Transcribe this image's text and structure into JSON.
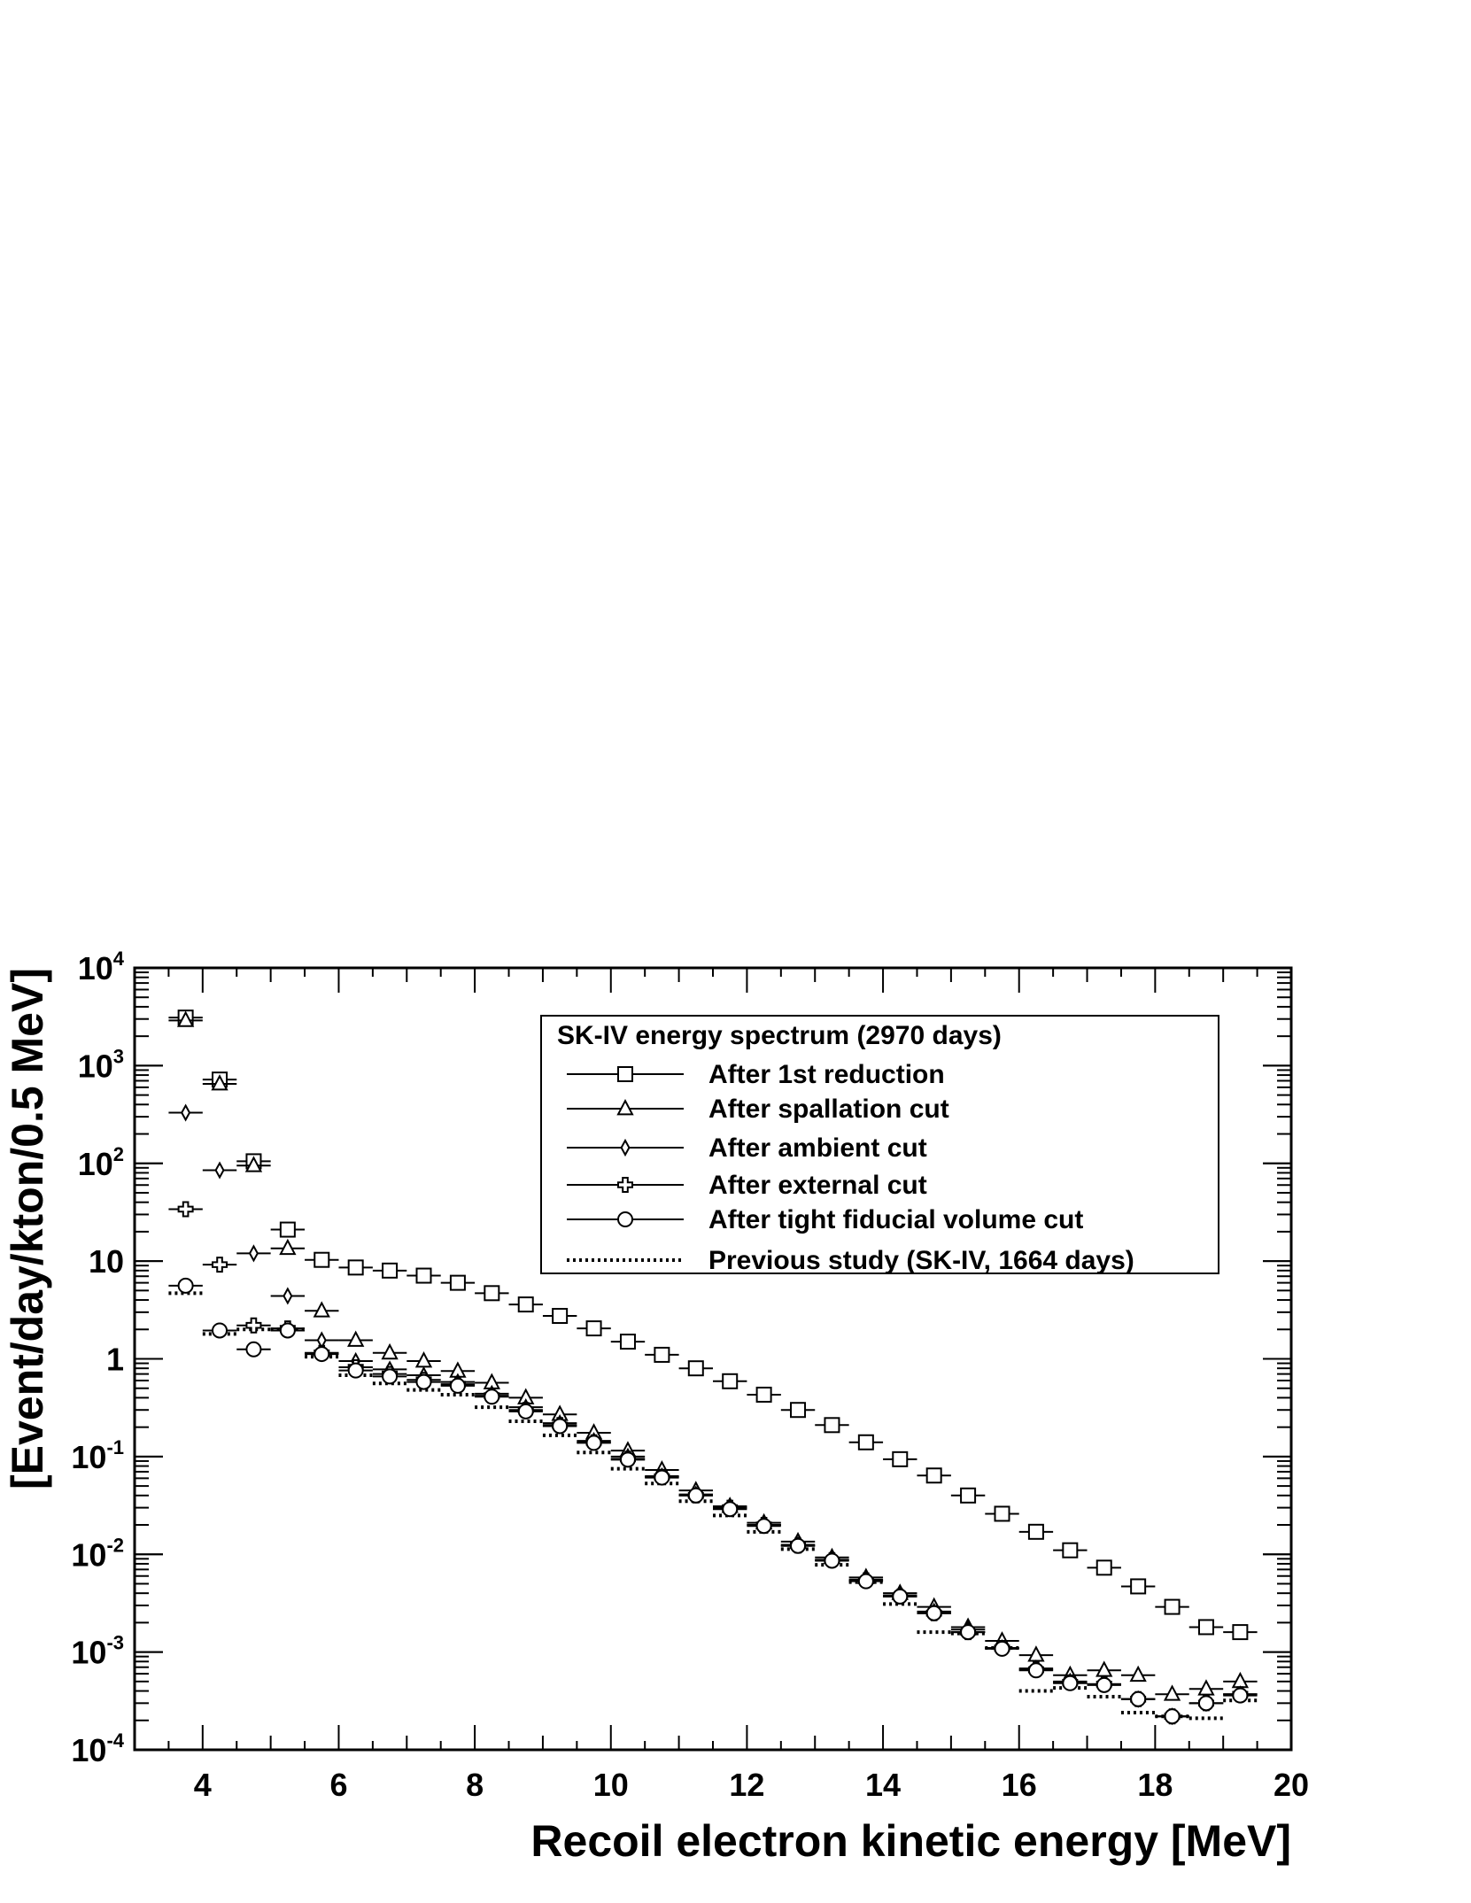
{
  "chart_data": {
    "type": "scatter",
    "xlabel": "Recoil electron kinetic energy [MeV]",
    "ylabel": "[Event/day/kton/0.5 MeV]",
    "xlim": [
      3,
      20
    ],
    "ylim": [
      0.0001,
      10000
    ],
    "yscale": "log",
    "grid": false,
    "x_ticks": [
      "4",
      "6",
      "8",
      "10",
      "12",
      "14",
      "16",
      "18",
      "20"
    ],
    "y_ticks": [
      {
        "base": "10",
        "exp": "-4"
      },
      {
        "base": "10",
        "exp": "-3"
      },
      {
        "base": "10",
        "exp": "-2"
      },
      {
        "base": "10",
        "exp": "-1"
      },
      {
        "base": "1",
        "exp": ""
      },
      {
        "base": "10",
        "exp": ""
      },
      {
        "base": "10",
        "exp": "2"
      },
      {
        "base": "10",
        "exp": "3"
      },
      {
        "base": "10",
        "exp": "4"
      }
    ],
    "legend": {
      "position": "top-right",
      "title": "SK-IV energy spectrum (2970 days)"
    },
    "series": [
      {
        "name": "After 1st reduction",
        "marker": "square",
        "x": [
          3.75,
          4.25,
          4.75,
          5.25,
          5.75,
          6.25,
          6.75,
          7.25,
          7.75,
          8.25,
          8.75,
          9.25,
          9.75,
          10.25,
          10.75,
          11.25,
          11.75,
          12.25,
          12.75,
          13.25,
          13.75,
          14.25,
          14.75,
          15.25,
          15.75,
          16.25,
          16.75,
          17.25,
          17.75,
          18.25,
          18.75,
          19.25
        ],
        "values": [
          3100,
          720,
          105,
          21,
          10.3,
          8.6,
          8.0,
          7.1,
          6.0,
          4.7,
          3.6,
          2.75,
          2.05,
          1.5,
          1.1,
          0.8,
          0.59,
          0.43,
          0.3,
          0.21,
          0.14,
          0.094,
          0.064,
          0.04,
          0.026,
          0.017,
          0.011,
          0.0073,
          0.0047,
          0.0029,
          0.0018,
          0.0016
        ]
      },
      {
        "name": "After spallation cut",
        "marker": "triangle",
        "x": [
          3.75,
          4.25,
          4.75,
          5.25,
          5.75,
          6.25,
          6.75,
          7.25,
          7.75,
          8.25,
          8.75,
          9.25,
          9.75,
          10.25,
          10.75,
          11.25,
          11.75,
          12.25,
          12.75,
          13.25,
          13.75,
          14.25,
          14.75,
          15.25,
          15.75,
          16.25,
          16.75,
          17.25,
          17.75,
          18.25,
          18.75,
          19.25
        ],
        "values": [
          2900,
          650,
          95,
          13.5,
          3.1,
          1.55,
          1.15,
          0.95,
          0.75,
          0.57,
          0.4,
          0.27,
          0.175,
          0.115,
          0.073,
          0.045,
          0.031,
          0.021,
          0.0135,
          0.0093,
          0.0058,
          0.004,
          0.0029,
          0.0018,
          0.0013,
          0.00093,
          0.00058,
          0.00065,
          0.00058,
          0.00037,
          0.00042,
          0.0005
        ]
      },
      {
        "name": "After ambient cut",
        "marker": "diamond",
        "x": [
          3.75,
          4.25,
          4.75,
          5.25,
          5.75,
          6.25,
          6.75,
          7.25,
          7.75,
          8.25,
          8.75,
          9.25,
          9.75,
          10.25,
          10.75,
          11.25,
          11.75,
          12.25,
          12.75,
          13.25,
          13.75,
          14.25,
          14.75,
          15.25,
          15.75,
          16.25,
          16.75,
          17.25,
          17.75,
          18.25,
          18.75,
          19.25
        ],
        "values": [
          330,
          85,
          12,
          4.4,
          1.55,
          0.95,
          0.78,
          0.68,
          0.58,
          0.44,
          0.32,
          0.22,
          0.145,
          0.1,
          0.063,
          0.041,
          0.03,
          0.02,
          0.0125,
          0.0088,
          0.0055,
          0.0038,
          0.0026,
          0.0017,
          0.0011,
          0.00068,
          0.0005,
          0.00047,
          0.00033,
          0.00022,
          0.0003,
          0.00037
        ]
      },
      {
        "name": "After external cut",
        "marker": "cross",
        "x": [
          3.75,
          4.25,
          4.75,
          5.25,
          5.75,
          6.25,
          6.75,
          7.25,
          7.75,
          8.25,
          8.75,
          9.25,
          9.75,
          10.25,
          10.75,
          11.25,
          11.75,
          12.25,
          12.75,
          13.25,
          13.75,
          14.25,
          14.75,
          15.25,
          15.75,
          16.25,
          16.75,
          17.25,
          17.75,
          18.25,
          18.75,
          19.25
        ],
        "values": [
          34,
          9.2,
          2.2,
          2.05,
          1.15,
          0.82,
          0.7,
          0.61,
          0.55,
          0.42,
          0.3,
          0.21,
          0.14,
          0.095,
          0.062,
          0.04,
          0.03,
          0.02,
          0.0123,
          0.0087,
          0.0054,
          0.0037,
          0.0025,
          0.0016,
          0.0011,
          0.00066,
          0.00049,
          0.00047,
          0.00033,
          0.00022,
          0.0003,
          0.00037
        ]
      },
      {
        "name": "After tight fiducial volume cut",
        "marker": "circle",
        "x": [
          3.75,
          4.25,
          4.75,
          5.25,
          5.75,
          6.25,
          6.75,
          7.25,
          7.75,
          8.25,
          8.75,
          9.25,
          9.75,
          10.25,
          10.75,
          11.25,
          11.75,
          12.25,
          12.75,
          13.25,
          13.75,
          14.25,
          14.75,
          15.25,
          15.75,
          16.25,
          16.75,
          17.25,
          17.75,
          18.25,
          18.75,
          19.25
        ],
        "values": [
          5.6,
          1.95,
          1.25,
          1.95,
          1.12,
          0.76,
          0.66,
          0.58,
          0.53,
          0.41,
          0.29,
          0.205,
          0.138,
          0.093,
          0.061,
          0.04,
          0.029,
          0.0195,
          0.0122,
          0.0086,
          0.0053,
          0.0037,
          0.0025,
          0.0016,
          0.00108,
          0.00065,
          0.00048,
          0.00046,
          0.00033,
          0.00022,
          0.0003,
          0.00036
        ]
      },
      {
        "name": "Previous study (SK-IV, 1664 days)",
        "marker": "dotted-line",
        "x": [
          3.75,
          4.25,
          4.75,
          5.25,
          5.75,
          6.25,
          6.75,
          7.25,
          7.75,
          8.25,
          8.75,
          9.25,
          9.75,
          10.25,
          10.75,
          11.25,
          11.75,
          12.25,
          12.75,
          13.25,
          13.75,
          14.25,
          14.75,
          15.25,
          15.75,
          16.25,
          16.75,
          17.25,
          17.75,
          18.25,
          18.75,
          19.25
        ],
        "values": [
          4.7,
          1.8,
          2.0,
          2.0,
          1.05,
          0.68,
          0.56,
          0.48,
          0.43,
          0.32,
          0.23,
          0.165,
          0.11,
          0.075,
          0.053,
          0.035,
          0.025,
          0.017,
          0.0113,
          0.0078,
          0.0052,
          0.0031,
          0.0016,
          0.00155,
          0.0011,
          0.0004,
          0.00043,
          0.00035,
          0.00024,
          0.00022,
          0.00021,
          0.00032
        ]
      }
    ]
  }
}
